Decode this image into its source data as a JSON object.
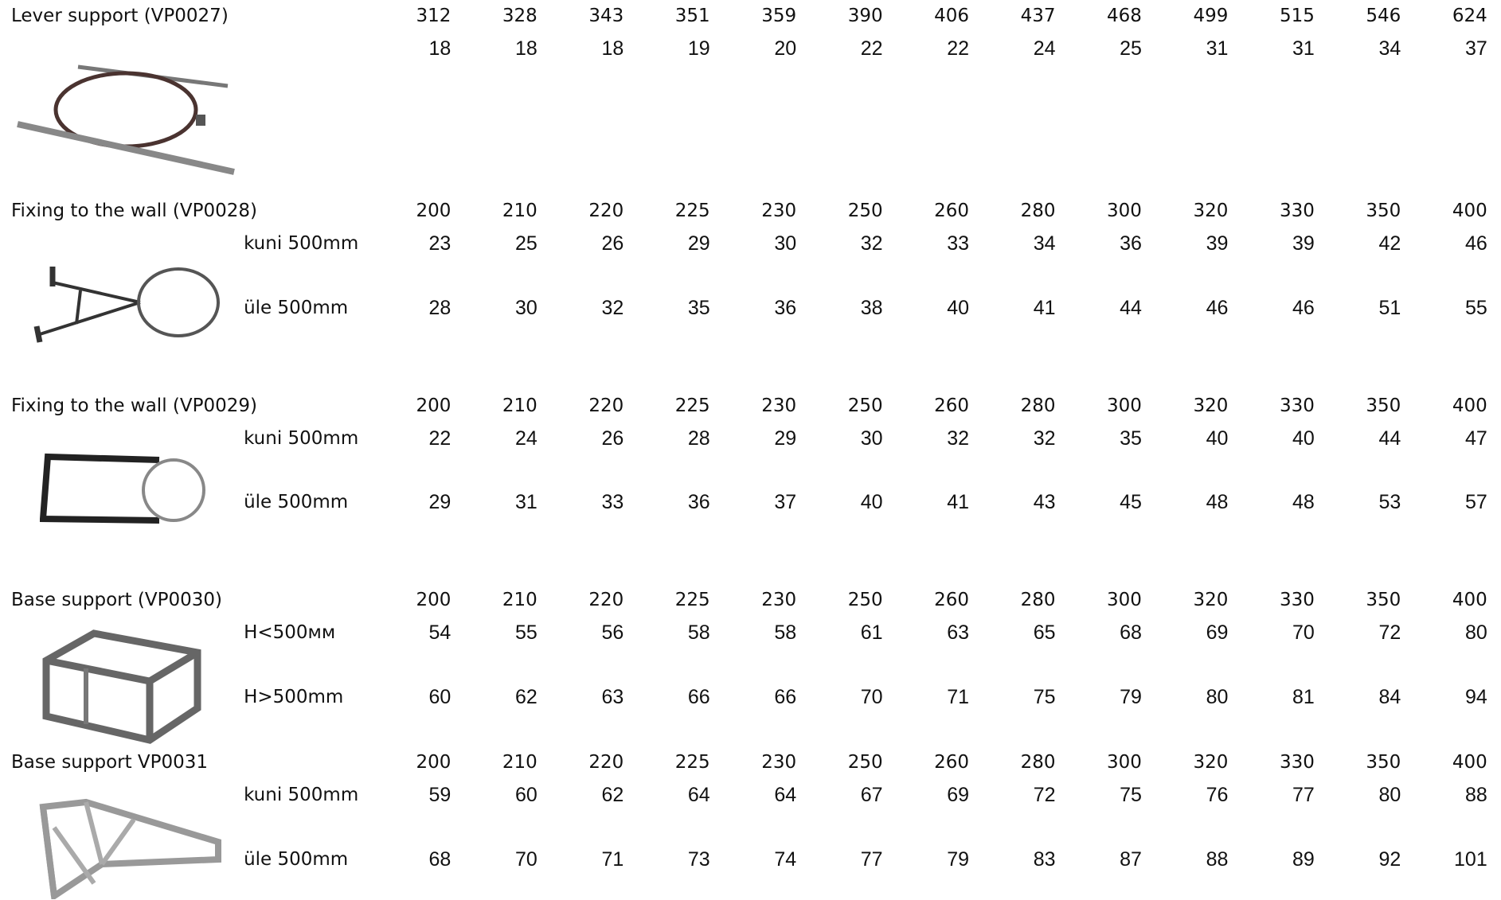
{
  "sections": [
    {
      "title": "Lever support (VP0027)",
      "sizes": [
        312,
        328,
        343,
        351,
        359,
        390,
        406,
        437,
        468,
        499,
        515,
        546,
        624
      ],
      "rows": [
        {
          "values": [
            18,
            18,
            18,
            19,
            20,
            22,
            22,
            24,
            25,
            31,
            31,
            34,
            37
          ]
        }
      ]
    },
    {
      "title": "Fixing to the wall (VP0028)",
      "sizes": [
        200,
        210,
        220,
        225,
        230,
        250,
        260,
        280,
        300,
        320,
        330,
        350,
        400
      ],
      "rows": [
        {
          "label": "kuni 500mm",
          "values": [
            23,
            25,
            26,
            29,
            30,
            32,
            33,
            34,
            36,
            39,
            39,
            42,
            46
          ]
        },
        {
          "label": "üle 500mm",
          "values": [
            28,
            30,
            32,
            35,
            36,
            38,
            40,
            41,
            44,
            46,
            46,
            51,
            55
          ]
        }
      ]
    },
    {
      "title": "Fixing to the wall (VP0029)",
      "sizes": [
        200,
        210,
        220,
        225,
        230,
        250,
        260,
        280,
        300,
        320,
        330,
        350,
        400
      ],
      "rows": [
        {
          "label": "kuni 500mm",
          "values": [
            22,
            24,
            26,
            28,
            29,
            30,
            32,
            32,
            35,
            40,
            40,
            44,
            47
          ]
        },
        {
          "label": "üle 500mm",
          "values": [
            29,
            31,
            33,
            36,
            37,
            40,
            41,
            43,
            45,
            48,
            48,
            53,
            57
          ]
        }
      ]
    },
    {
      "title": "Base support (VP0030)",
      "sizes": [
        200,
        210,
        220,
        225,
        230,
        250,
        260,
        280,
        300,
        320,
        330,
        350,
        400
      ],
      "rows": [
        {
          "label": "H<500мм",
          "values": [
            54,
            55,
            56,
            58,
            58,
            61,
            63,
            65,
            68,
            69,
            70,
            72,
            80
          ]
        },
        {
          "label": "H>500mm",
          "values": [
            60,
            62,
            63,
            66,
            66,
            70,
            71,
            75,
            79,
            80,
            81,
            84,
            94
          ]
        }
      ]
    },
    {
      "title": "Base support VP0031",
      "sizes": [
        200,
        210,
        220,
        225,
        230,
        250,
        260,
        280,
        300,
        320,
        330,
        350,
        400
      ],
      "rows": [
        {
          "label": "kuni 500mm",
          "values": [
            59,
            60,
            62,
            64,
            64,
            67,
            69,
            72,
            75,
            76,
            77,
            80,
            88
          ]
        },
        {
          "label": "üle 500mm",
          "values": [
            68,
            70,
            71,
            73,
            74,
            77,
            79,
            83,
            87,
            88,
            89,
            92,
            101
          ]
        }
      ]
    }
  ]
}
